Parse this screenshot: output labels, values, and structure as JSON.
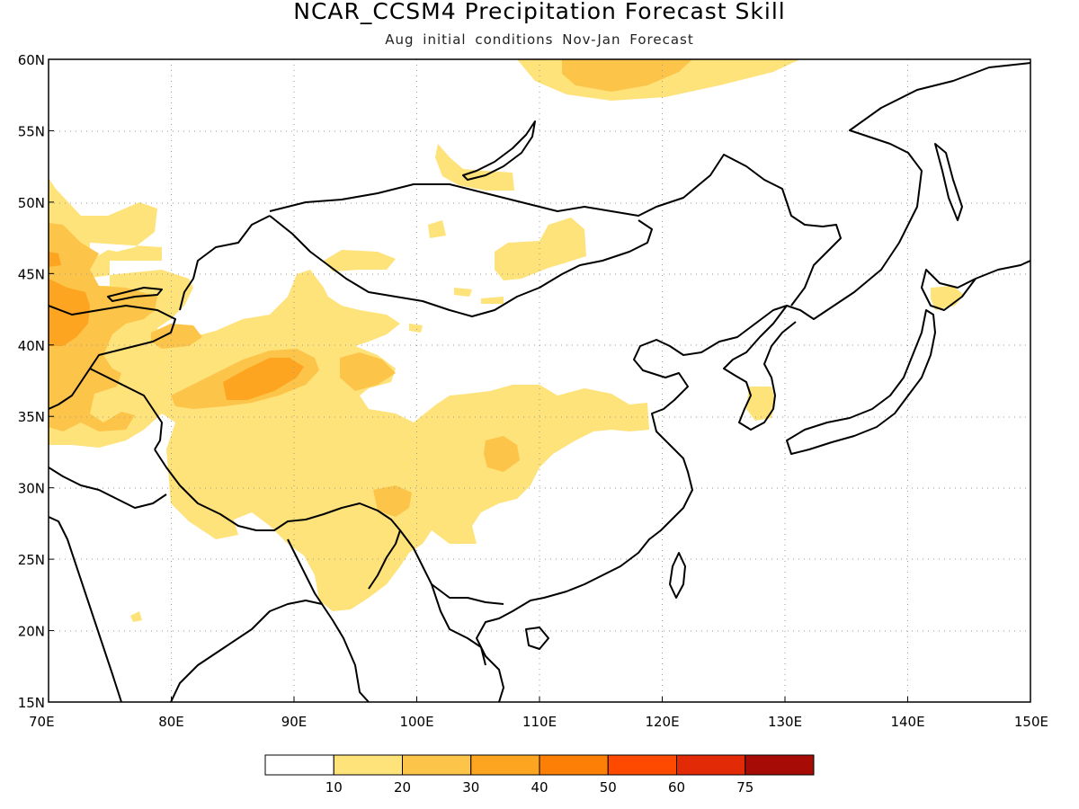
{
  "header": {
    "title": "NCAR_CCSM4 Precipitation Forecast Skill",
    "subtitle": "Aug initial conditions  Nov-Jan Forecast"
  },
  "axes": {
    "lon_labels": [
      "70E",
      "80E",
      "90E",
      "100E",
      "110E",
      "120E",
      "130E",
      "140E",
      "150E"
    ],
    "lat_labels": [
      "60N",
      "55N",
      "50N",
      "45N",
      "40N",
      "35N",
      "30N",
      "25N",
      "20N",
      "15N"
    ]
  },
  "colorbar": {
    "labels": [
      "10",
      "20",
      "30",
      "40",
      "50",
      "60",
      "75"
    ],
    "colors": [
      "#ffffff",
      "#fee27a",
      "#fdc44a",
      "#fda520",
      "#fe7f06",
      "#fe4a00",
      "#e32a07",
      "#a60c05"
    ]
  },
  "shading_colors": {
    "level_10": "#fee27a",
    "level_20": "#fdc44a",
    "level_30": "#fda520"
  }
}
